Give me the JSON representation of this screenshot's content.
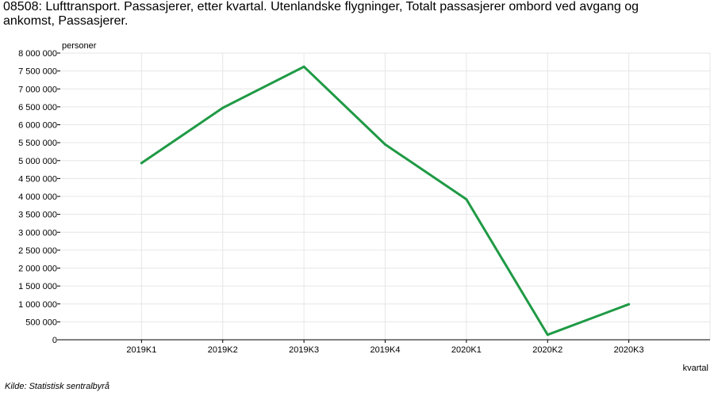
{
  "title": "08508: Lufttransport. Passasjerer, etter kvartal. Utenlandske flygninger, Totalt passasjerer ombord ved avgang og ankomst, Passasjerer.",
  "source": "Kilde:  Statistisk sentralbyrå",
  "colors": {
    "line": "#1f9a45",
    "grid": "#e6e6e6",
    "axis": "#000000"
  },
  "chart_data": {
    "type": "line",
    "title": "08508: Lufttransport. Passasjerer, etter kvartal. Utenlandske flygninger, Totalt passasjerer ombord ved avgang og ankomst, Passasjerer.",
    "xlabel": "kvartal",
    "ylabel": "personer",
    "categories": [
      "2019K1",
      "2019K2",
      "2019K3",
      "2019K4",
      "2020K1",
      "2020K2",
      "2020K3"
    ],
    "series": [
      {
        "values": [
          4930000,
          6470000,
          7620000,
          5450000,
          3920000,
          140000,
          990000
        ]
      }
    ],
    "ylim": [
      0,
      8000000
    ],
    "yticks": [
      0,
      500000,
      1000000,
      1500000,
      2000000,
      2500000,
      3000000,
      3500000,
      4000000,
      4500000,
      5000000,
      5500000,
      6000000,
      6500000,
      7000000,
      7500000,
      8000000
    ],
    "ytick_labels": [
      "0",
      "500 000",
      "1 000 000",
      "1 500 000",
      "2 000 000",
      "2 500 000",
      "3 000 000",
      "3 500 000",
      "4 000 000",
      "4 500 000",
      "5 000 000",
      "5 500 000",
      "6 000 000",
      "6 500 000",
      "7 000 000",
      "7 500 000",
      "8 000 000"
    ],
    "grid": true,
    "legend": "none"
  }
}
